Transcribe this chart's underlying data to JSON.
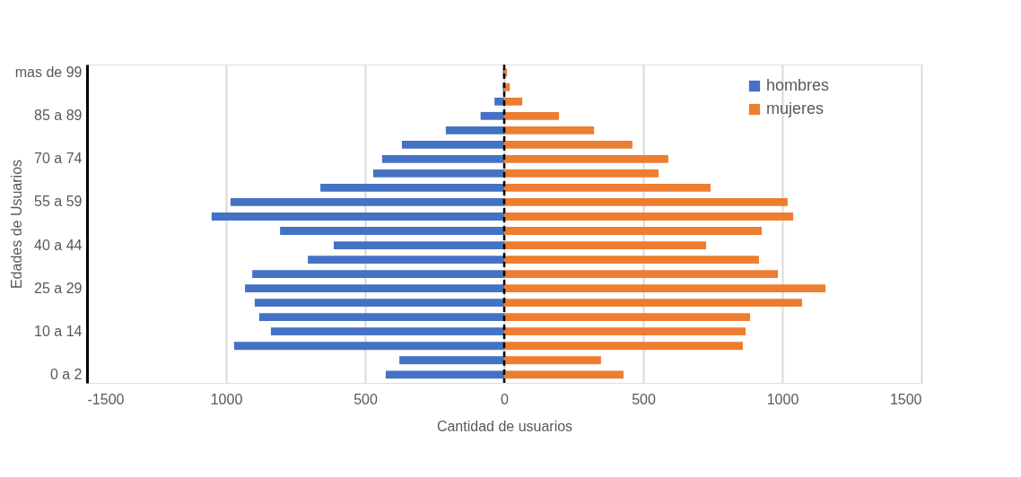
{
  "chart_data": {
    "type": "bar",
    "orientation": "horizontal",
    "xlabel": "Cantidad de usuarios",
    "ylabel": "Edades de Usuarios",
    "categories": [
      "mas de 99",
      null,
      null,
      "85 a 89",
      null,
      null,
      "70 a 74",
      null,
      null,
      "55 a 59",
      null,
      null,
      "40 a 44",
      null,
      null,
      "25 a 29",
      null,
      null,
      "10 a 14",
      null,
      null,
      "0 a 2"
    ],
    "series": [
      {
        "name": "hombres",
        "color": "#4472c4",
        "values": [
          -5,
          -5,
          -35,
          -85,
          -210,
          -368,
          -439,
          -471,
          -661,
          -984,
          -1052,
          -806,
          -613,
          -706,
          -906,
          -932,
          -897,
          -881,
          -839,
          -971,
          -377,
          -426
        ]
      },
      {
        "name": "mujeres",
        "color": "#ed7d31",
        "values": [
          10,
          20,
          65,
          197,
          323,
          461,
          590,
          555,
          742,
          1019,
          1039,
          926,
          726,
          916,
          984,
          1155,
          1071,
          884,
          868,
          858,
          348,
          429
        ]
      }
    ],
    "xlim": [
      -1500,
      1500
    ],
    "xticks": [
      -1500,
      {
        "value": -1000,
        "label": "1000"
      },
      {
        "value": -500,
        "label": "500"
      },
      0,
      500,
      1000,
      1500
    ],
    "ref_lines": [
      {
        "axis": "x",
        "value": 0,
        "color": "#000000",
        "line_style": "dashed"
      }
    ],
    "grid": "x",
    "legend": "top right",
    "stacked": true
  }
}
